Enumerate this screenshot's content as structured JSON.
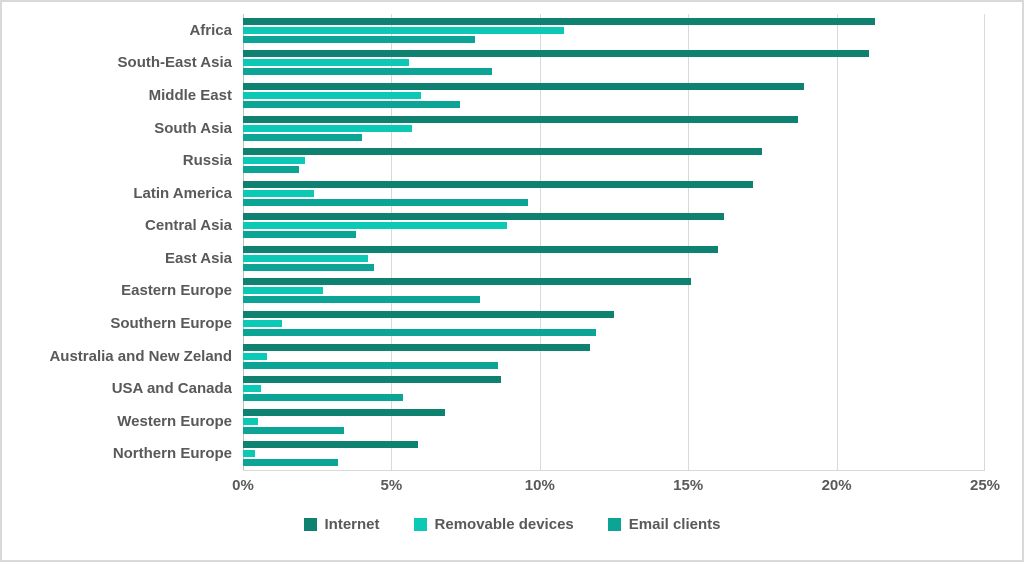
{
  "chart_data": {
    "type": "bar",
    "orientation": "horizontal",
    "title": "",
    "categories": [
      "Africa",
      "South-East Asia",
      "Middle East",
      "South Asia",
      "Russia",
      "Latin America",
      "Central Asia",
      "East Asia",
      "Eastern Europe",
      "Southern Europe",
      "Australia and New Zeland",
      "USA and Canada",
      "Western Europe",
      "Northern Europe"
    ],
    "series": [
      {
        "name": "Internet",
        "color": "#0e8170",
        "values": [
          21.3,
          21.1,
          18.9,
          18.7,
          17.5,
          17.2,
          16.2,
          16.0,
          15.1,
          12.5,
          11.7,
          8.7,
          6.8,
          5.9
        ]
      },
      {
        "name": "Removable devices",
        "color": "#0bc9b5",
        "values": [
          10.8,
          5.6,
          6.0,
          5.7,
          2.1,
          2.4,
          8.9,
          4.2,
          2.7,
          1.3,
          0.8,
          0.6,
          0.5,
          0.4
        ]
      },
      {
        "name": "Email clients",
        "color": "#0ca495",
        "values": [
          7.8,
          8.4,
          7.3,
          4.0,
          1.9,
          9.6,
          3.8,
          4.4,
          8.0,
          11.9,
          8.6,
          5.4,
          3.4,
          3.2
        ]
      }
    ],
    "x_axis": {
      "ticks": [
        "0%",
        "5%",
        "10%",
        "15%",
        "20%",
        "25%"
      ],
      "tick_values": [
        0,
        5,
        10,
        15,
        20,
        25
      ],
      "max": 25
    },
    "grid": true,
    "legend_position": "bottom",
    "legend": [
      "Internet",
      "Removable devices",
      "Email clients"
    ],
    "colors": {
      "text": "#595959",
      "gridline": "#d9d9d9",
      "axis_line": "#bfbfbf",
      "background": "#ffffff"
    }
  }
}
